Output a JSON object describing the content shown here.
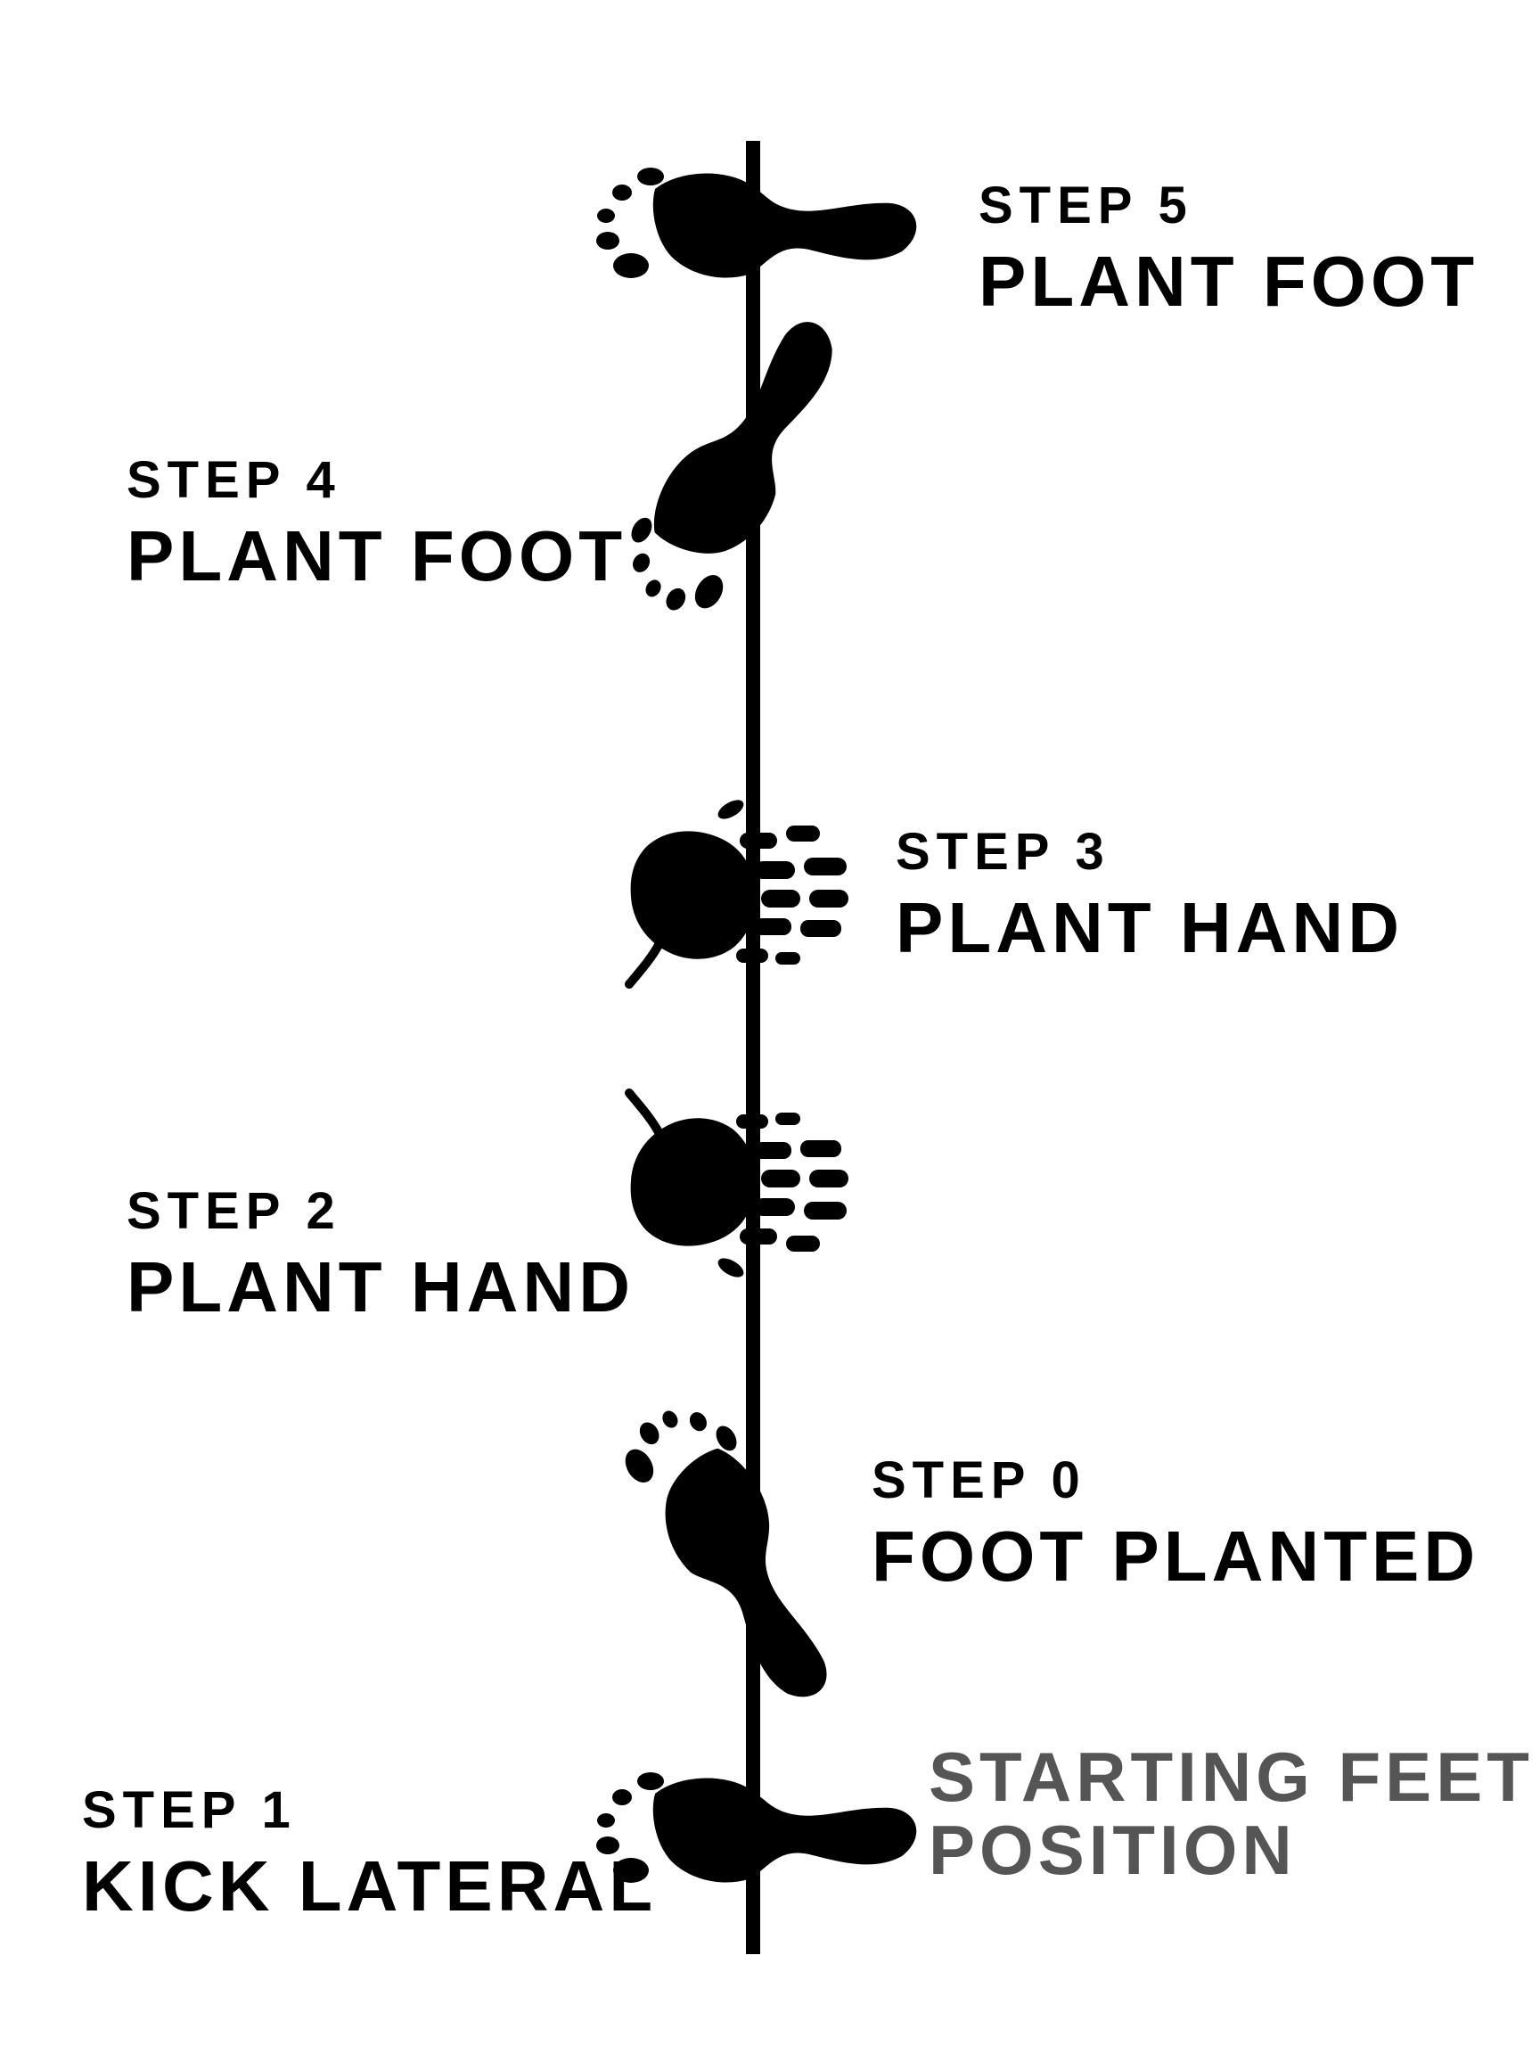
{
  "colors": {
    "ink": "#000000",
    "note": "#555555",
    "background": "#ffffff"
  },
  "steps": [
    {
      "id": "step-5",
      "number": "STEP 5",
      "action": "PLANT FOOT",
      "print": "foot-horizontal-left"
    },
    {
      "id": "step-4",
      "number": "STEP 4",
      "action": "PLANT FOOT",
      "print": "foot-diagonal-up"
    },
    {
      "id": "step-3",
      "number": "STEP 3",
      "action": "PLANT HAND",
      "print": "hand-fingers-right"
    },
    {
      "id": "step-2",
      "number": "STEP 2",
      "action": "PLANT HAND",
      "print": "hand-fingers-right"
    },
    {
      "id": "step-0",
      "number": "STEP 0",
      "action": "FOOT PLANTED",
      "print": "foot-diagonal-down"
    },
    {
      "id": "step-1",
      "number": "STEP 1",
      "action": "KICK LATERAL",
      "print": "foot-horizontal-left"
    }
  ],
  "starting_note": {
    "line1": "STARTING FEET",
    "line2": "POSITION"
  }
}
